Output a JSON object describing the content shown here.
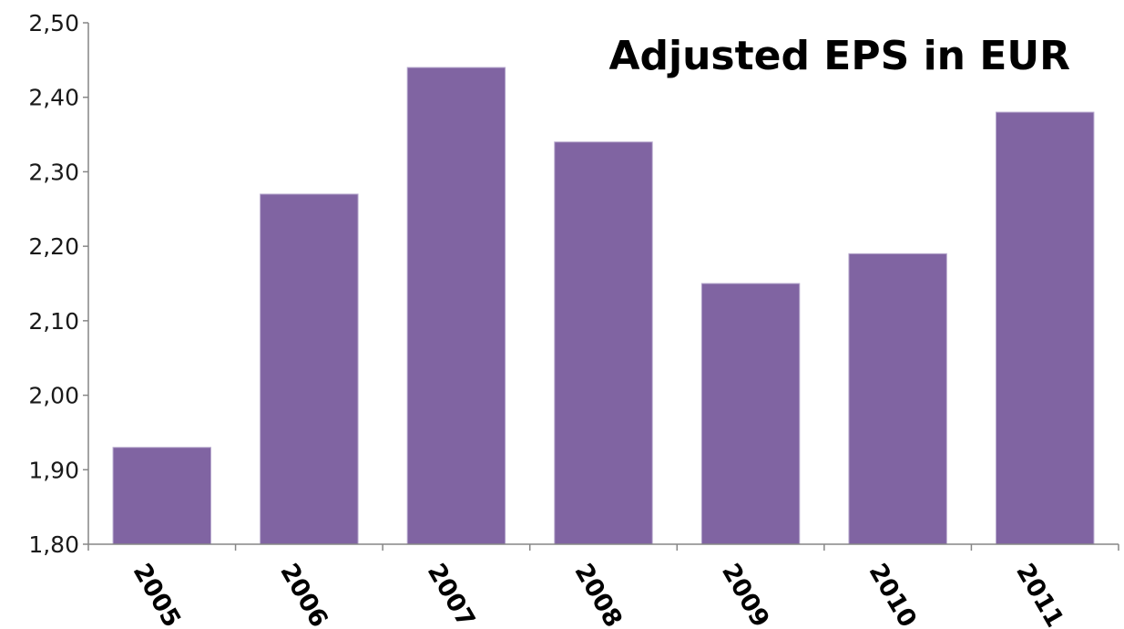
{
  "chart_data": {
    "type": "bar",
    "title": "Adjusted EPS in EUR",
    "xlabel": "",
    "ylabel": "",
    "categories": [
      "2005",
      "2006",
      "2007",
      "2008",
      "2009",
      "2010",
      "2011"
    ],
    "series": [
      {
        "values": [
          1.93,
          2.27,
          2.44,
          2.34,
          2.15,
          2.19,
          2.38
        ]
      }
    ],
    "ylim": [
      1.8,
      2.5
    ],
    "yticks": [
      1.8,
      1.9,
      2.0,
      2.1,
      2.2,
      2.3,
      2.4,
      2.5
    ],
    "ytick_labels": [
      "1,80",
      "1,90",
      "2,00",
      "2,10",
      "2,20",
      "2,30",
      "2,40",
      "2,50"
    ],
    "grid": false,
    "legend": "none",
    "colors": {
      "bar": "#8064a2",
      "axis": "#868686"
    }
  }
}
